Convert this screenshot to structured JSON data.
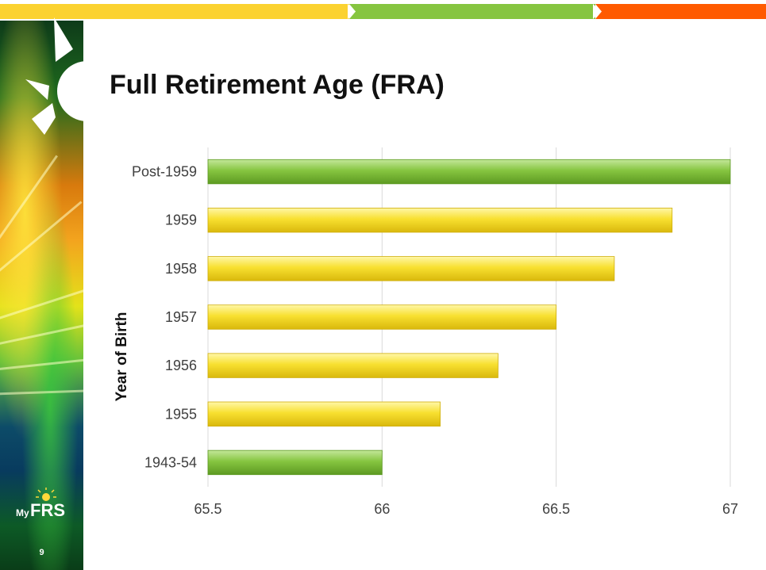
{
  "slide": {
    "title": "Full Retirement Age (FRA)",
    "number": "9",
    "logo_text_my": "My",
    "logo_text_frs": "FRS"
  },
  "colors": {
    "yellow": "#f8e030",
    "green": "#86c540",
    "orange": "#ff5a00",
    "grid": "#d9d9d9",
    "text": "#404040"
  },
  "chart_data": {
    "type": "bar",
    "orientation": "horizontal",
    "title": "",
    "ylabel": "Year of Birth",
    "xlabel": "",
    "xlim": [
      65.5,
      67
    ],
    "xticks": [
      "65.5",
      "66",
      "66.5",
      "67"
    ],
    "grid": true,
    "categories": [
      "Post-1959",
      "1959",
      "1958",
      "1957",
      "1956",
      "1955",
      "1943-54"
    ],
    "values": [
      67,
      66.833,
      66.667,
      66.5,
      66.333,
      66.167,
      66
    ],
    "bar_colors": [
      "green",
      "yellow",
      "yellow",
      "yellow",
      "yellow",
      "yellow",
      "green"
    ]
  }
}
